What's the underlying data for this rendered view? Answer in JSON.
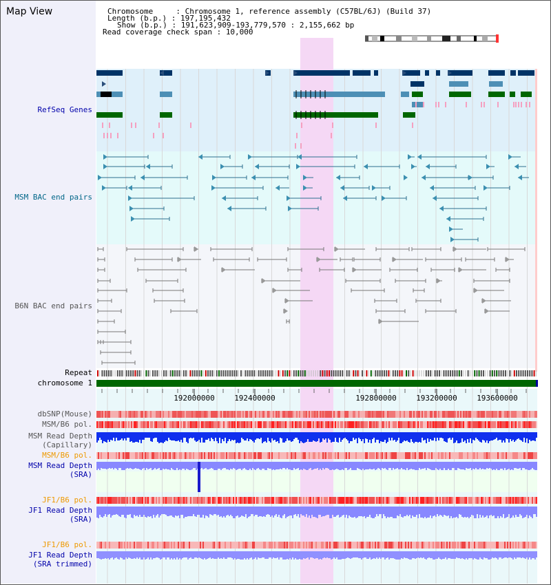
{
  "app": {
    "title": "Map View"
  },
  "header": {
    "chromosome_key": "Chromosome     : ",
    "chromosome_val": "Chromosome 1, reference assembly (C57BL/6J) (Build 37)",
    "length_key": "Length (b.p.) : ",
    "length_val": "197,195,432",
    "show_key": "Show (b.p.) : ",
    "show_val": "191,623,909-193,779,570 : 2,155,662 bp",
    "span_key": "Read coverage check span : ",
    "span_val": "10,000"
  },
  "tracks": {
    "refseq": "RefSeq Genes",
    "msm_bac": "MSM BAC end pairs",
    "b6n_bac": "B6N BAC end pairs",
    "repeat": "Repeat",
    "chromosome": "chromosome 1",
    "dbsnp": "dbSNP(Mouse)",
    "msm_b6_pol_1": "MSM/B6 pol.",
    "msm_read_depth_cap_1": "MSM Read Depth",
    "msm_read_depth_cap_2": "(Capillary)",
    "msm_b6_pol_2": "MSM/B6 pol.",
    "msm_read_depth_sra_1": "MSM Read Depth",
    "msm_read_depth_sra_2": "(SRA)",
    "jf1_b6_pol_1": "JF1/B6 pol.",
    "jf1_read_depth_sra_1": "JF1 Read Depth",
    "jf1_read_depth_sra_2": "(SRA)",
    "jf1_b6_pol_2": "JF1/B6 pol.",
    "jf1_read_depth_trim_1": "JF1 Read Depth",
    "jf1_read_depth_trim_2": "(SRA trimmed)"
  },
  "ruler": {
    "ticks": [
      "192000000",
      "192400000",
      "192800000",
      "193200000",
      "193600000"
    ]
  },
  "colors": {
    "refseq_bg": "#dff0fa",
    "msm_bac_bg": "#e4fafa",
    "b6n_bg": "#f4f6fa",
    "highlight": "#f5d8f5",
    "gene_dark": "#003366",
    "gene_light": "#4d8fb5",
    "gene_green": "#006600",
    "msm_line": "#2b6f8f",
    "b6n_line": "#777777",
    "read_depth_cap": "#0000ff",
    "read_depth_sra": "#8888ff",
    "pol_red": "#ee3333",
    "label_blue": "#0000aa",
    "label_teal": "#006688",
    "label_orange": "#ee9900"
  }
}
